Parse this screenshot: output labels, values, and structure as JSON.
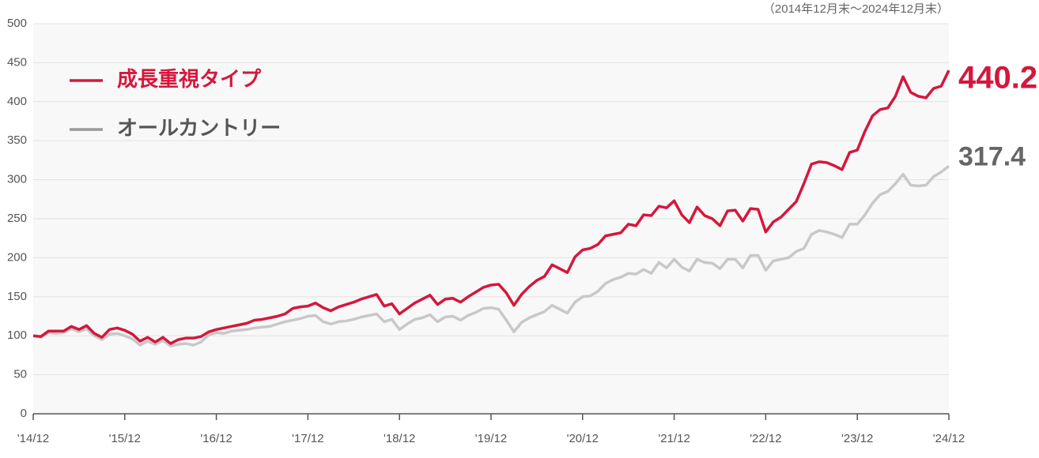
{
  "chart_data": {
    "type": "line",
    "subtitle": "（2014年12月末～2024年12月末）",
    "categories": [
      "'14/12",
      null,
      null,
      null,
      null,
      null,
      null,
      null,
      null,
      null,
      null,
      null,
      "'15/12",
      null,
      null,
      null,
      null,
      null,
      null,
      null,
      null,
      null,
      null,
      null,
      "'16/12",
      null,
      null,
      null,
      null,
      null,
      null,
      null,
      null,
      null,
      null,
      null,
      "'17/12",
      null,
      null,
      null,
      null,
      null,
      null,
      null,
      null,
      null,
      null,
      null,
      "'18/12",
      null,
      null,
      null,
      null,
      null,
      null,
      null,
      null,
      null,
      null,
      null,
      "'19/12",
      null,
      null,
      null,
      null,
      null,
      null,
      null,
      null,
      null,
      null,
      null,
      "'20/12",
      null,
      null,
      null,
      null,
      null,
      null,
      null,
      null,
      null,
      null,
      null,
      "'21/12",
      null,
      null,
      null,
      null,
      null,
      null,
      null,
      null,
      null,
      null,
      null,
      "'22/12",
      null,
      null,
      null,
      null,
      null,
      null,
      null,
      null,
      null,
      null,
      null,
      "'23/12",
      null,
      null,
      null,
      null,
      null,
      null,
      null,
      null,
      null,
      null,
      null,
      "'24/12"
    ],
    "series": [
      {
        "name": "成長重視タイプ",
        "color": "#d5173c",
        "values": [
          100,
          99,
          106,
          106,
          106,
          112,
          108,
          113,
          103,
          98,
          108,
          110,
          107,
          102,
          93,
          98,
          92,
          98,
          90,
          95,
          97,
          97,
          99,
          105,
          108,
          110,
          112,
          114,
          116,
          120,
          121,
          123,
          125,
          128,
          135,
          137,
          138,
          142,
          136,
          132,
          137,
          140,
          143,
          147,
          150,
          153,
          138,
          141,
          128,
          135,
          142,
          147,
          152,
          140,
          147,
          148,
          143,
          150,
          156,
          162,
          165,
          166,
          155,
          139,
          153,
          163,
          171,
          176,
          191,
          186,
          181,
          201,
          210,
          212,
          217,
          228,
          230,
          232,
          243,
          241,
          255,
          254,
          266,
          264,
          273,
          255,
          245,
          265,
          254,
          250,
          241,
          260,
          261,
          247,
          263,
          262,
          233,
          246,
          252,
          262,
          272,
          295,
          320,
          323,
          322,
          318,
          313,
          335,
          338,
          362,
          382,
          390,
          392,
          407,
          432,
          412,
          407,
          405,
          417,
          420,
          440.2
        ]
      },
      {
        "name": "オールカントリー",
        "color": "#c8c8c8",
        "values": [
          100,
          98,
          104,
          103,
          104,
          109,
          105,
          109,
          100,
          95,
          102,
          103,
          100,
          96,
          88,
          93,
          89,
          94,
          87,
          89,
          90,
          88,
          92,
          101,
          104,
          103,
          106,
          107,
          108,
          110,
          111,
          112,
          115,
          118,
          120,
          122,
          125,
          126,
          118,
          115,
          118,
          119,
          121,
          124,
          126,
          128,
          118,
          121,
          108,
          115,
          121,
          123,
          127,
          118,
          124,
          125,
          120,
          126,
          130,
          135,
          136,
          134,
          120,
          105,
          117,
          123,
          127,
          131,
          139,
          134,
          129,
          143,
          150,
          151,
          157,
          167,
          172,
          175,
          180,
          179,
          185,
          180,
          194,
          187,
          198,
          188,
          183,
          198,
          194,
          193,
          186,
          198,
          198,
          187,
          203,
          203,
          184,
          196,
          198,
          200,
          208,
          212,
          230,
          235,
          233,
          230,
          226,
          243,
          243,
          255,
          270,
          281,
          285,
          295,
          307,
          293,
          292,
          293,
          304,
          310,
          317.4
        ]
      }
    ],
    "ylim": [
      0,
      500
    ],
    "yticks": [
      0,
      50,
      100,
      150,
      200,
      250,
      300,
      350,
      400,
      450,
      500
    ],
    "grid": true
  }
}
